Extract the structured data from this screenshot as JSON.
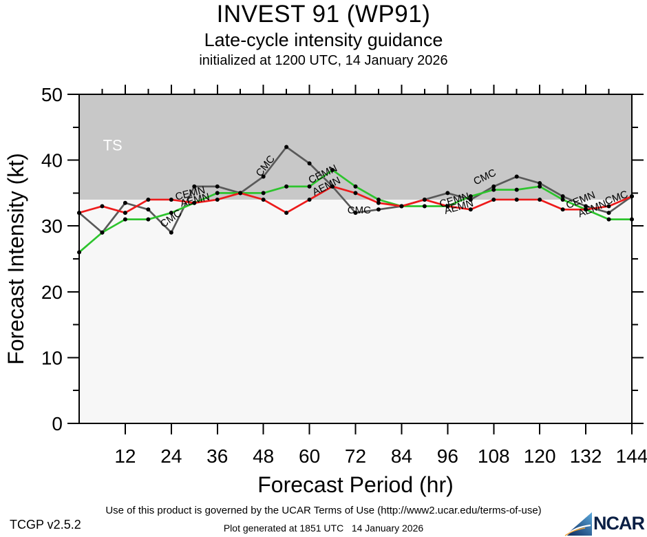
{
  "header": {
    "title": "INVEST 91 (WP91)",
    "subtitle": "Late-cycle intensity guidance",
    "init_line": "initialized at 1200 UTC, 14 January 2026"
  },
  "chart_data": {
    "type": "line",
    "title": "INVEST 91 (WP91)",
    "subtitle": "Late-cycle intensity guidance",
    "init_line": "initialized at 1200 UTC, 14 January 2026",
    "xlabel": "Forecast Period (hr)",
    "ylabel": "Forecast Intensity (kt)",
    "xlim": [
      0,
      144
    ],
    "ylim": [
      0,
      50
    ],
    "x_major_ticks": [
      12,
      24,
      36,
      48,
      60,
      72,
      84,
      96,
      108,
      120,
      132,
      144
    ],
    "x_minor_step": 6,
    "y_major_ticks": [
      0,
      10,
      20,
      30,
      40,
      50
    ],
    "y_minor_step": 5,
    "grid": false,
    "legend": "labels drawn along lines",
    "x": [
      0,
      6,
      12,
      18,
      24,
      30,
      36,
      42,
      48,
      54,
      60,
      66,
      72,
      78,
      84,
      90,
      96,
      102,
      108,
      114,
      120,
      126,
      132,
      138,
      144
    ],
    "series": [
      {
        "name": "CMC",
        "color": "#595959",
        "values": [
          32,
          29,
          33.5,
          32.5,
          29,
          36,
          36,
          35,
          37.5,
          42,
          39.5,
          36,
          32,
          32.5,
          33,
          34,
          35,
          34,
          36,
          37.5,
          36.5,
          34.5,
          33,
          32,
          34.5
        ]
      },
      {
        "name": "CEMN",
        "color": "#2dc42d",
        "values": [
          26,
          29,
          31,
          31,
          32,
          33.5,
          35,
          35,
          35,
          36,
          36,
          38.5,
          36,
          34,
          33,
          33,
          33,
          34.5,
          35.5,
          35.5,
          36,
          34,
          32.5,
          31,
          31
        ]
      },
      {
        "name": "AEMN",
        "color": "#ed1b1b",
        "values": [
          32,
          33,
          32,
          34,
          34,
          33.5,
          34,
          35,
          34,
          32,
          34,
          36,
          35,
          33.5,
          33,
          34,
          33,
          32.5,
          34,
          34,
          34,
          32.5,
          32.5,
          33,
          34.5
        ]
      }
    ],
    "marker_color": "#000000",
    "plot_bg": "#f7f7f7",
    "threshold_region": {
      "label": "TS",
      "from": 34,
      "to": 50,
      "fill": "#c8c8c8",
      "label_color": "#ffffff",
      "label_hr": 6.2,
      "label_kt": 41.5
    },
    "line_labels": [
      {
        "text": "CMC",
        "hr": 21.9,
        "kt": 29.7,
        "rot": -35
      },
      {
        "text": "CEMN",
        "hr": 25.3,
        "kt": 33.9,
        "rot": -14
      },
      {
        "text": "AEMN",
        "hr": 26.6,
        "kt": 32.9,
        "rot": -14
      },
      {
        "text": "CMC",
        "hr": 47.3,
        "kt": 37.4,
        "rot": -52
      },
      {
        "text": "CEMN",
        "hr": 60.3,
        "kt": 36.4,
        "rot": -26
      },
      {
        "text": "AEMN",
        "hr": 61.3,
        "kt": 34.6,
        "rot": -26
      },
      {
        "text": "CMC",
        "hr": 69.9,
        "kt": 31.9,
        "rot": 0
      },
      {
        "text": "CEMN",
        "hr": 94.2,
        "kt": 32.8,
        "rot": -16
      },
      {
        "text": "AEMN",
        "hr": 95.4,
        "kt": 31.8,
        "rot": -16
      },
      {
        "text": "CMC",
        "hr": 103.3,
        "kt": 36.2,
        "rot": -26
      },
      {
        "text": "CEMN",
        "hr": 127.3,
        "kt": 32.6,
        "rot": -22
      },
      {
        "text": "AEMN",
        "hr": 130.4,
        "kt": 31.3,
        "rot": -22
      },
      {
        "text": "CMC",
        "hr": 137.4,
        "kt": 33.2,
        "rot": -20
      }
    ]
  },
  "footer": {
    "terms": "Use of this product is governed by the UCAR Terms of Use (http://www2.ucar.edu/terms-of-use)",
    "version": "TCGP v2.5.2",
    "generated": "Plot generated at 1851 UTC   14 January 2026",
    "logo_text": "NCAR"
  },
  "logo_colors": {
    "triangle_dark": "#0a2558",
    "triangle_light": "#5aa8dc",
    "arc_white": "#ffffff",
    "arc_orange": "#f0a030",
    "text_color": "#0a1f44"
  }
}
